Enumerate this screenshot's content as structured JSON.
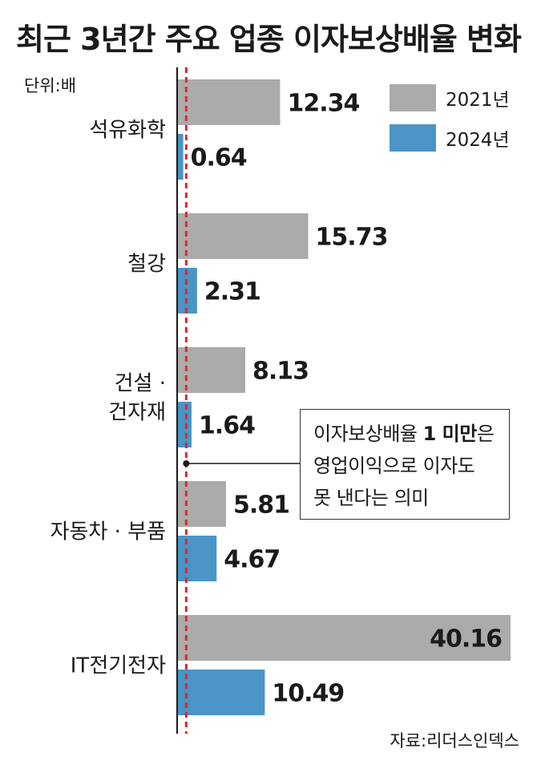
{
  "title": "최근 3년간 주요 업종 이자보상배율 변화",
  "unit": "단위:배",
  "source": "자료:리더스인덱스",
  "colors": {
    "y2021": "#ababab",
    "y2024": "#4a95c6",
    "threshold": "#e0262c"
  },
  "callout": {
    "line1_pre": "이자보상배율 ",
    "line1_bold": "1 미만",
    "line1_post": "은",
    "line2": "영업이익으로 이자도",
    "line3": "못 낸다는 의미"
  },
  "chart_data": {
    "type": "bar",
    "orientation": "horizontal",
    "title": "최근 3년간 주요 업종 이자보상배율 변화",
    "unit": "단위:배",
    "categories": [
      "석유화학",
      "철강",
      "건설 · 건자재",
      "자동차 · 부품",
      "IT전기전자"
    ],
    "category_lines": [
      [
        "석유화학"
      ],
      [
        "철강"
      ],
      [
        "건설 ·",
        "건자재"
      ],
      [
        "자동차 · 부품"
      ],
      [
        "IT전기전자"
      ]
    ],
    "series": [
      {
        "name": "2021년",
        "values": [
          12.34,
          15.73,
          8.13,
          5.81,
          40.16
        ],
        "labels": [
          "12.34",
          "15.73",
          "8.13",
          "5.81",
          "40.16"
        ]
      },
      {
        "name": "2024년",
        "values": [
          0.64,
          2.31,
          1.64,
          4.67,
          10.49
        ],
        "labels": [
          "0.64",
          "2.31",
          "1.64",
          "4.67",
          "10.49"
        ]
      }
    ],
    "xlim": [
      0,
      40.16
    ],
    "reference_line": 1,
    "legend_position": "top-right"
  }
}
